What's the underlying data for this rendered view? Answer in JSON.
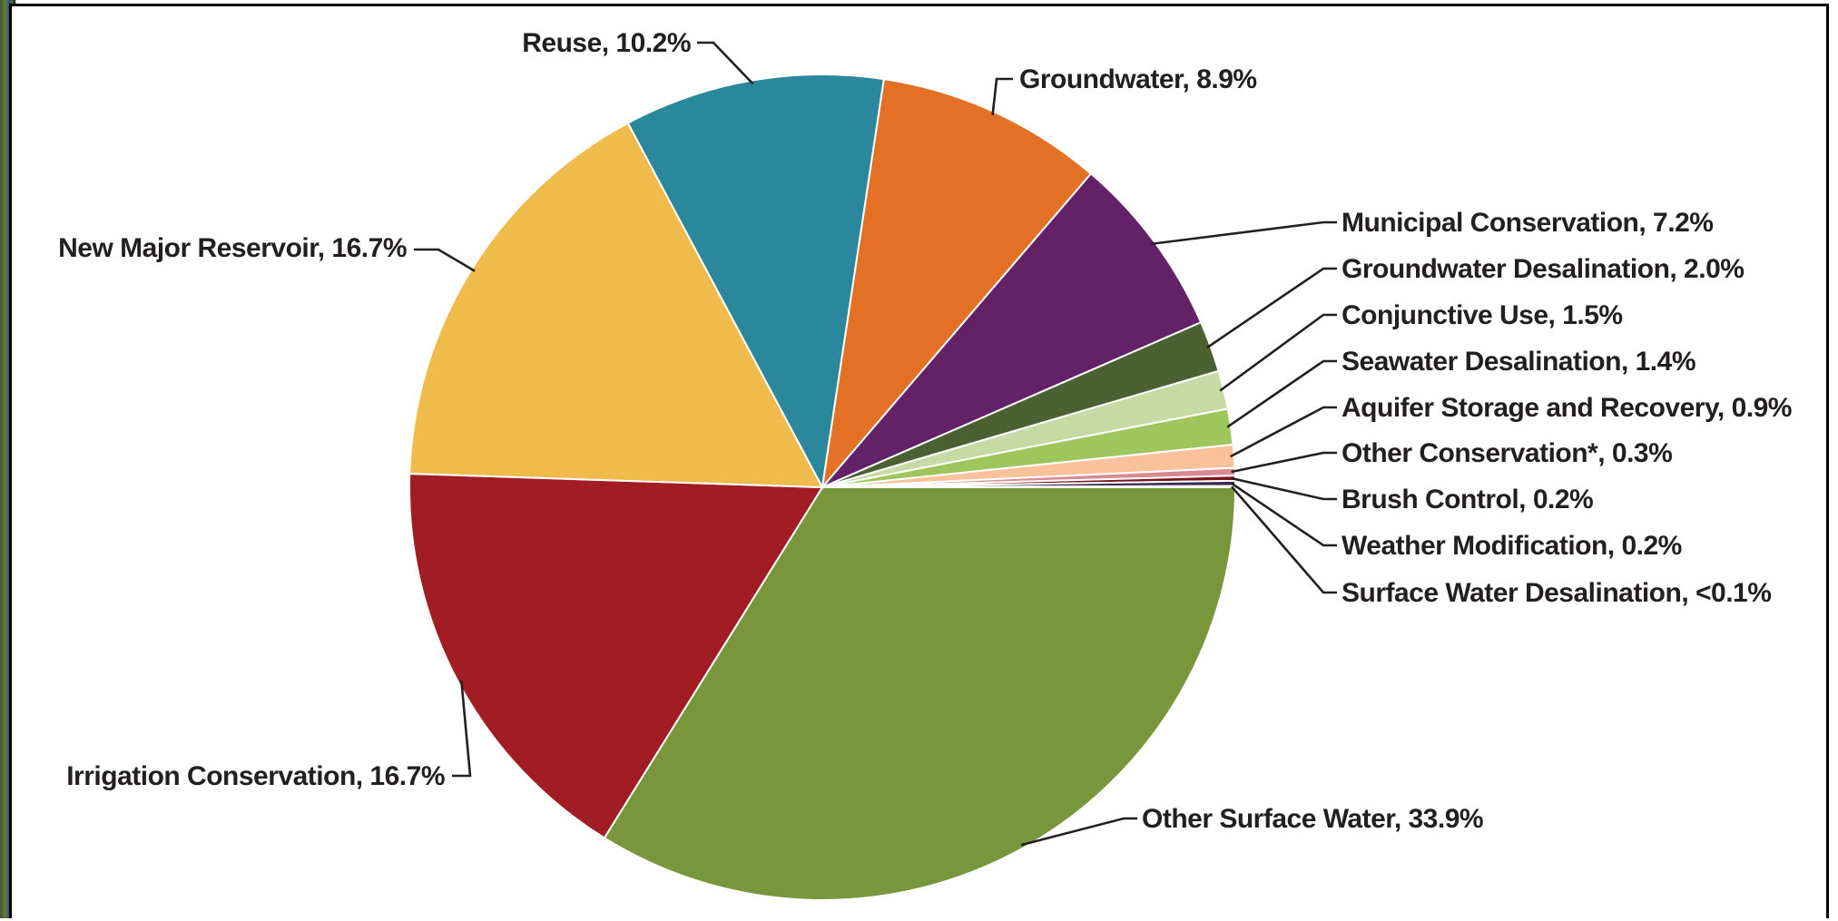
{
  "chart_data": {
    "type": "pie",
    "title": "",
    "start_angle_deg": 0,
    "direction": "clockwise",
    "slices": [
      {
        "label": "Other Surface Water, 33.9%",
        "value": 33.9,
        "color": "#78963c"
      },
      {
        "label": "Irrigation Conservation, 16.7%",
        "value": 16.7,
        "color": "#a11d23"
      },
      {
        "label": "New Major Reservoir, 16.7%",
        "value": 16.7,
        "color": "#efbb4b"
      },
      {
        "label": "Reuse, 10.2%",
        "value": 10.2,
        "color": "#2b879c"
      },
      {
        "label": "Groundwater, 8.9%",
        "value": 8.9,
        "color": "#e37125"
      },
      {
        "label": "Municipal Conservation, 7.2%",
        "value": 7.2,
        "color": "#632167"
      },
      {
        "label": "Groundwater Desalination, 2.0%",
        "value": 2.0,
        "color": "#4b6131"
      },
      {
        "label": "Conjunctive Use, 1.5%",
        "value": 1.5,
        "color": "#c5dba3"
      },
      {
        "label": "Seawater Desalination, 1.4%",
        "value": 1.4,
        "color": "#9ec65c"
      },
      {
        "label": "Aquifer Storage and Recovery, 0.9%",
        "value": 0.9,
        "color": "#fbc19a"
      },
      {
        "label": "Other Conservation*, 0.3%",
        "value": 0.3,
        "color": "#d98990"
      },
      {
        "label": "Brush Control, 0.2%",
        "value": 0.2,
        "color": "#7a1519"
      },
      {
        "label": "Weather Modification, 0.2%",
        "value": 0.2,
        "color": "#3a2a4e"
      },
      {
        "label": "Surface Water Desalination, <0.1%",
        "value": 0.05,
        "color": "#8a9a5a"
      }
    ]
  }
}
